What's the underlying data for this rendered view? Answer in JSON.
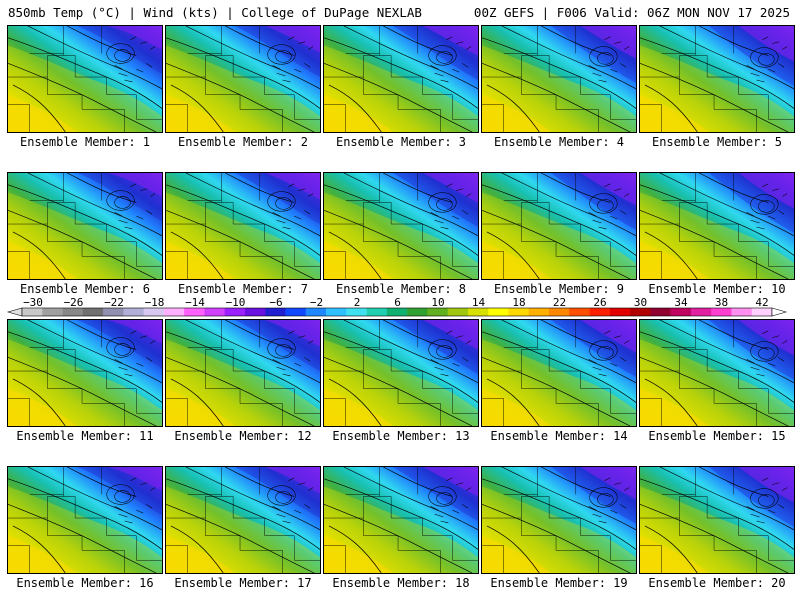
{
  "header": {
    "left_title": "850mb Temp (°C) | Wind (kts) | College of DuPage NEXLAB",
    "right_title": "00Z GEFS | F006 Valid: 06Z MON NOV 17 2025"
  },
  "colorbar": {
    "tick_labels": [
      "−30",
      "−26",
      "−22",
      "−18",
      "−14",
      "−10",
      "−6",
      "−2",
      "2",
      "6",
      "10",
      "14",
      "18",
      "22",
      "26",
      "30",
      "34",
      "38",
      "42"
    ],
    "colors": [
      "#c8c8c8",
      "#a0a0a0",
      "#888888",
      "#707070",
      "#9090b0",
      "#b0b0d8",
      "#d8c8f0",
      "#ffb0ff",
      "#ff60ff",
      "#d040ff",
      "#9a20ff",
      "#6a10e0",
      "#2020d0",
      "#1048ff",
      "#2088ff",
      "#30c0ff",
      "#40e0f0",
      "#20d0b0",
      "#10b070",
      "#30a030",
      "#60b020",
      "#a0c810",
      "#d8e000",
      "#ffff00",
      "#ffd800",
      "#ffb000",
      "#ff8800",
      "#ff5000",
      "#ff2000",
      "#e00000",
      "#b00000",
      "#900030",
      "#c00060",
      "#e020a0",
      "#ff40d0",
      "#ff90f0",
      "#ffd0ff"
    ]
  },
  "members": [
    {
      "label": "Ensemble Member: 1"
    },
    {
      "label": "Ensemble Member: 2"
    },
    {
      "label": "Ensemble Member: 3"
    },
    {
      "label": "Ensemble Member: 4"
    },
    {
      "label": "Ensemble Member: 5"
    },
    {
      "label": "Ensemble Member: 6"
    },
    {
      "label": "Ensemble Member: 7"
    },
    {
      "label": "Ensemble Member: 8"
    },
    {
      "label": "Ensemble Member: 9"
    },
    {
      "label": "Ensemble Member: 10"
    },
    {
      "label": "Ensemble Member: 11"
    },
    {
      "label": "Ensemble Member: 12"
    },
    {
      "label": "Ensemble Member: 13"
    },
    {
      "label": "Ensemble Member: 14"
    },
    {
      "label": "Ensemble Member: 15"
    },
    {
      "label": "Ensemble Member: 16"
    },
    {
      "label": "Ensemble Member: 17"
    },
    {
      "label": "Ensemble Member: 18"
    },
    {
      "label": "Ensemble Member: 19"
    },
    {
      "label": "Ensemble Member: 20"
    }
  ]
}
